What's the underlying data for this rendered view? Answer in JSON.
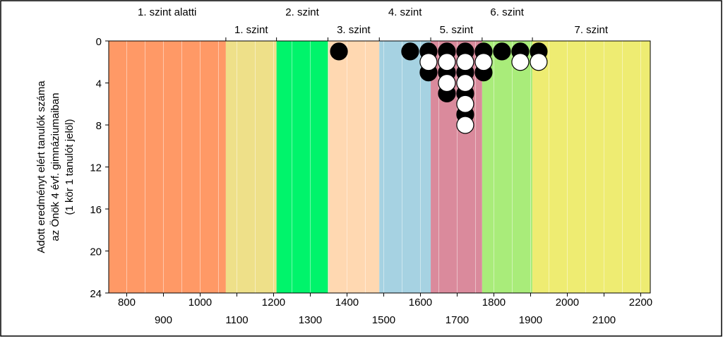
{
  "chart_data": {
    "type": "scatter",
    "title": "",
    "xlabel": "",
    "ylabel_lines": [
      "Adott eredményt elért tanulók száma",
      "az Önök 4 évf. gimnáziumaiban",
      "(1 kör 1 tanulót jelöl)"
    ],
    "xlim": [
      751,
      2226
    ],
    "ylim": [
      0,
      24
    ],
    "y_inverted": true,
    "y_ticks": [
      0,
      4,
      8,
      12,
      16,
      20,
      24
    ],
    "x_ticks_upper": [
      800,
      1000,
      1200,
      1400,
      1600,
      1800,
      2000,
      2200
    ],
    "x_ticks_lower": [
      900,
      1100,
      1300,
      1500,
      1700,
      1900,
      2100
    ],
    "minor_grid_step": 50,
    "bands": [
      {
        "from": 751,
        "to": 1070,
        "color": "#ff9966"
      },
      {
        "from": 1070,
        "to": 1208,
        "color": "#eee089"
      },
      {
        "from": 1208,
        "to": 1348,
        "color": "#00f46b"
      },
      {
        "from": 1348,
        "to": 1488,
        "color": "#ffd8b1"
      },
      {
        "from": 1488,
        "to": 1628,
        "color": "#a6d2e2"
      },
      {
        "from": 1628,
        "to": 1768,
        "color": "#da8a9c"
      },
      {
        "from": 1768,
        "to": 1905,
        "color": "#a9ec7a"
      },
      {
        "from": 1905,
        "to": 2226,
        "color": "#eeec72"
      }
    ],
    "level_labels_upper": [
      {
        "text": "1. szint alatti",
        "x": 910
      },
      {
        "text": "2. szint",
        "x": 1278
      },
      {
        "text": "4. szint",
        "x": 1558
      },
      {
        "text": "6. szint",
        "x": 1836
      }
    ],
    "level_labels_lower": [
      {
        "text": "1. szint",
        "x": 1139
      },
      {
        "text": "3. szint",
        "x": 1418
      },
      {
        "text": "5. szint",
        "x": 1698
      },
      {
        "text": "7. szint",
        "x": 2065
      }
    ],
    "series": [
      {
        "fill": "#000000",
        "points": [
          {
            "x": 1378,
            "y": 1
          },
          {
            "x": 1572,
            "y": 1
          },
          {
            "x": 1622,
            "y": 1
          },
          {
            "x": 1622,
            "y": 3
          },
          {
            "x": 1672,
            "y": 1
          },
          {
            "x": 1672,
            "y": 3
          },
          {
            "x": 1672,
            "y": 5
          },
          {
            "x": 1722,
            "y": 1
          },
          {
            "x": 1722,
            "y": 3
          },
          {
            "x": 1722,
            "y": 5
          },
          {
            "x": 1722,
            "y": 7
          },
          {
            "x": 1772,
            "y": 1
          },
          {
            "x": 1772,
            "y": 3
          },
          {
            "x": 1822,
            "y": 1
          },
          {
            "x": 1872,
            "y": 1
          },
          {
            "x": 1922,
            "y": 1
          }
        ]
      },
      {
        "fill": "#ffffff",
        "points": [
          {
            "x": 1622,
            "y": 2
          },
          {
            "x": 1672,
            "y": 2
          },
          {
            "x": 1672,
            "y": 4
          },
          {
            "x": 1722,
            "y": 2
          },
          {
            "x": 1722,
            "y": 4
          },
          {
            "x": 1722,
            "y": 6
          },
          {
            "x": 1722,
            "y": 8
          },
          {
            "x": 1772,
            "y": 2
          },
          {
            "x": 1872,
            "y": 2
          },
          {
            "x": 1922,
            "y": 2
          }
        ]
      }
    ]
  }
}
